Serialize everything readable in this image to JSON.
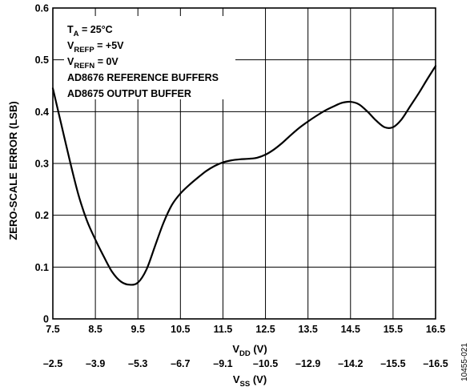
{
  "chart_data": {
    "type": "line",
    "title": "",
    "ylabel": "ZERO-SCALE ERROR (LSB)",
    "xlabel": {
      "main": "V",
      "sub": "DD",
      "unit": " (V)"
    },
    "x2label": {
      "main": "V",
      "sub": "SS",
      "unit": " (V)"
    },
    "xlim": [
      7.5,
      16.5
    ],
    "ylim": [
      0,
      0.6
    ],
    "grid": true,
    "x_ticks": [
      "7.5",
      "8.5",
      "9.5",
      "10.5",
      "11.5",
      "12.5",
      "13.5",
      "14.5",
      "15.5",
      "16.5"
    ],
    "x2_ticks": [
      "–2.5",
      "–3.9",
      "–5.3",
      "–6.7",
      "–9.1",
      "–10.5",
      "–12.9",
      "–14.2",
      "–15.5",
      "–16.5"
    ],
    "y_ticks": [
      "0",
      "0.1",
      "0.2",
      "0.3",
      "0.4",
      "0.5",
      "0.6"
    ],
    "legend": [
      {
        "main": "T",
        "sub": "A",
        "rest": " = 25°C"
      },
      {
        "main": "V",
        "sub": "REFP",
        "rest": " = +5V"
      },
      {
        "main": "V",
        "sub": "REFN",
        "rest": " = 0V"
      },
      {
        "main": "AD8676 REFERENCE BUFFERS",
        "sub": "",
        "rest": ""
      },
      {
        "main": "AD8675 OUTPUT BUFFER",
        "sub": "",
        "rest": ""
      }
    ],
    "legend_placement": "top-left",
    "series": [
      {
        "x": [
          7.5,
          7.7,
          7.9,
          8.1,
          8.3,
          8.5,
          8.7,
          8.9,
          9.1,
          9.3,
          9.5,
          9.7,
          9.9,
          10.1,
          10.3,
          10.5,
          10.7,
          10.9,
          11.1,
          11.3,
          11.5,
          11.7,
          11.9,
          12.1,
          12.3,
          12.5,
          12.7,
          12.9,
          13.1,
          13.3,
          13.5,
          13.7,
          13.9,
          14.1,
          14.3,
          14.5,
          14.7,
          14.9,
          15.1,
          15.3,
          15.5,
          15.7,
          15.9,
          16.1,
          16.3,
          16.5
        ],
        "y": [
          0.445,
          0.375,
          0.305,
          0.24,
          0.19,
          0.153,
          0.12,
          0.09,
          0.072,
          0.066,
          0.07,
          0.095,
          0.14,
          0.185,
          0.22,
          0.242,
          0.258,
          0.272,
          0.285,
          0.295,
          0.302,
          0.306,
          0.308,
          0.309,
          0.311,
          0.317,
          0.327,
          0.34,
          0.355,
          0.369,
          0.381,
          0.392,
          0.402,
          0.41,
          0.417,
          0.419,
          0.414,
          0.4,
          0.383,
          0.37,
          0.37,
          0.385,
          0.41,
          0.435,
          0.462,
          0.488
        ]
      }
    ]
  },
  "figure_id": "10455-021"
}
